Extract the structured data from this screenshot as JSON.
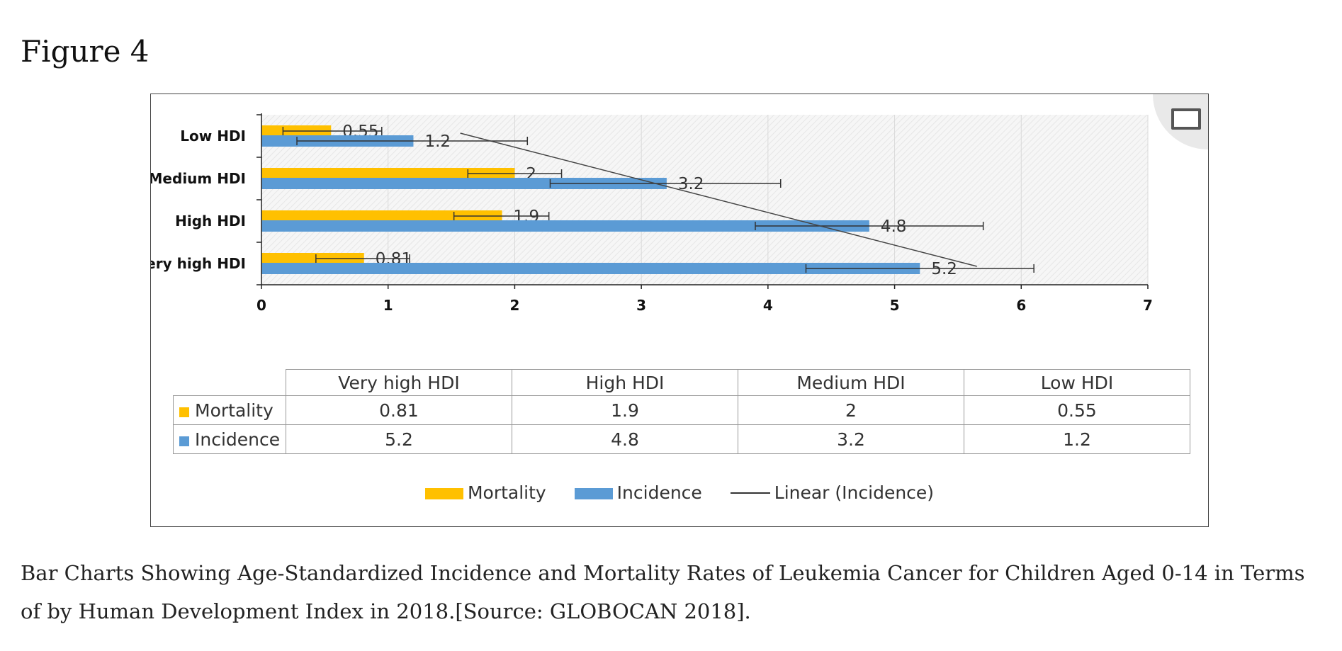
{
  "figure_label": "Figure 4",
  "caption": "Bar Charts Showing Age-Standardized Incidence and Mortality Rates of Leukemia Cancer for Children Aged 0-14 in Terms of by Human Development Index in 2018.[Source: GLOBOCAN 2018].",
  "colors": {
    "mortality": "#ffc000",
    "incidence": "#5b9bd5",
    "trend": "#444444",
    "axis": "#222222"
  },
  "chart_data": {
    "type": "bar",
    "orientation": "horizontal",
    "title": "",
    "xlabel": "",
    "ylabel": "",
    "xlim": [
      0,
      7
    ],
    "x_ticks": [
      0,
      1,
      2,
      3,
      4,
      5,
      6,
      7
    ],
    "categories": [
      "Low HDI",
      "Medium HDI",
      "High HDI",
      "Very high HDI"
    ],
    "series": [
      {
        "name": "Mortality",
        "values": [
          0.55,
          2,
          1.9,
          0.81
        ],
        "labels": [
          "0.55",
          "2",
          "1.9",
          "0.81"
        ],
        "error_low": [
          0.17,
          1.63,
          1.52,
          0.43
        ],
        "error_high": [
          0.95,
          2.37,
          2.27,
          1.17
        ]
      },
      {
        "name": "Incidence",
        "values": [
          1.2,
          3.2,
          4.8,
          5.2
        ],
        "labels": [
          "1.2",
          "3.2",
          "4.8",
          "5.2"
        ],
        "error_low": [
          0.28,
          2.28,
          3.9,
          4.3
        ],
        "error_high": [
          2.1,
          4.1,
          5.7,
          6.1
        ]
      }
    ],
    "trendline": {
      "name": "Linear (Incidence)",
      "start": {
        "x": 1.57,
        "category": "Low HDI"
      },
      "end": {
        "x": 5.65,
        "category": "Very high HDI"
      }
    },
    "grid": true,
    "legend_position": "bottom"
  },
  "data_table": {
    "columns": [
      "Very high HDI",
      "High HDI",
      "Medium HDI",
      "Low HDI"
    ],
    "rows": [
      {
        "label": "Mortality",
        "values": [
          "0.81",
          "1.9",
          "2",
          "0.55"
        ]
      },
      {
        "label": "Incidence",
        "values": [
          "5.2",
          "4.8",
          "3.2",
          "1.2"
        ]
      }
    ]
  },
  "legend": {
    "mortality": "Mortality",
    "incidence": "Incidence",
    "trend": "Linear (Incidence)"
  },
  "expand_icon": "expand-icon"
}
